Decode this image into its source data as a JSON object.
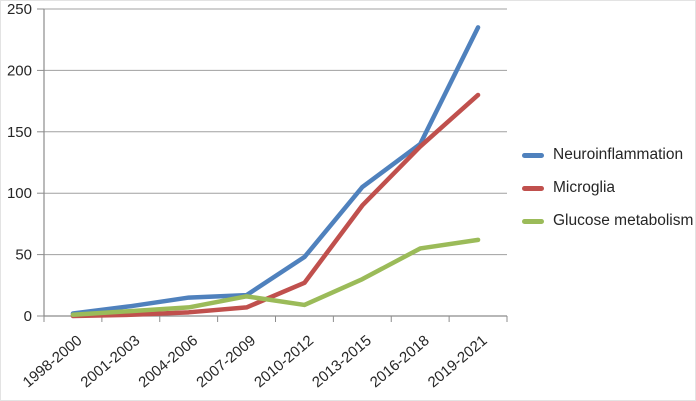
{
  "chart_data": {
    "type": "line",
    "title": "",
    "xlabel": "",
    "ylabel": "",
    "categories": [
      "1998-2000",
      "2001-2003",
      "2004-2006",
      "2007-2009",
      "2010-2012",
      "2013-2015",
      "2016-2018",
      "2019-2021"
    ],
    "series": [
      {
        "name": "Neuroinflammation",
        "color": "#4f81bd",
        "values": [
          2,
          8,
          15,
          17,
          48,
          105,
          140,
          235
        ]
      },
      {
        "name": "Microglia",
        "color": "#c0504d",
        "values": [
          0,
          1,
          3,
          7,
          27,
          90,
          138,
          180
        ]
      },
      {
        "name": "Glucose metabolism",
        "color": "#9bbb59",
        "values": [
          1,
          4,
          7,
          16,
          9,
          30,
          55,
          62
        ]
      }
    ],
    "ylim": [
      0,
      250
    ],
    "yticks": [
      0,
      50,
      100,
      150,
      200,
      250
    ],
    "grid": true,
    "legend_position": "right"
  },
  "colors": {
    "gridline": "#a0a0a0",
    "axis": "#8c8c8c",
    "tick_label": "#262626",
    "legend_text": "#262626",
    "background": "#ffffff",
    "series_blue": "#4f81bd",
    "series_red": "#c0504d",
    "series_green": "#9bbb59"
  }
}
